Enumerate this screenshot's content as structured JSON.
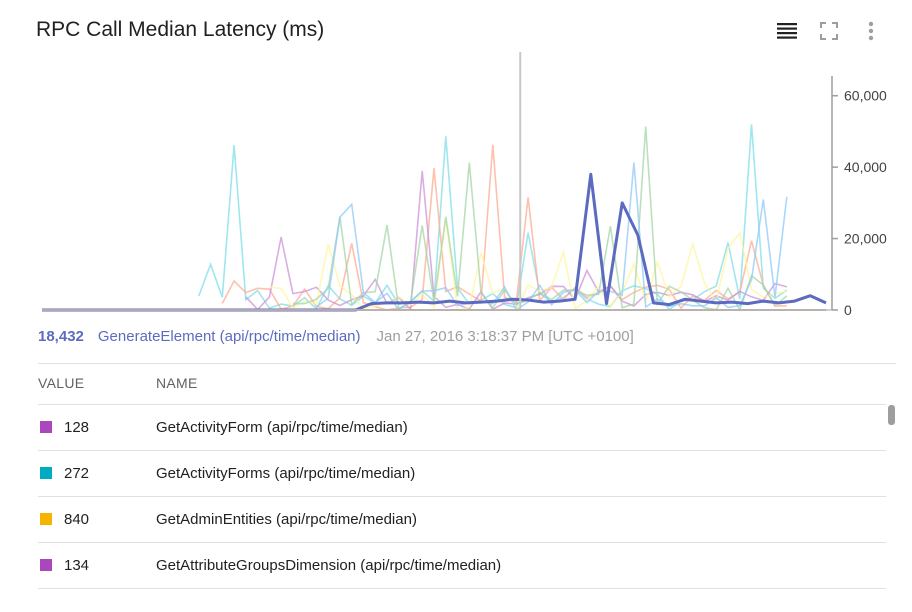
{
  "header": {
    "title": "RPC Call Median Latency (ms)",
    "icons": [
      "legend-list-icon",
      "fullscreen-icon",
      "more-vert-icon"
    ]
  },
  "chart_data": {
    "type": "line",
    "ylim": [
      0,
      70000
    ],
    "y_ticks": [
      "0",
      "20,000",
      "40,000",
      "60,000"
    ],
    "y_tick_values": [
      0,
      20000,
      40000,
      60000
    ],
    "x": [
      0,
      2,
      4,
      6,
      8,
      10,
      12,
      14,
      16,
      18,
      20,
      22,
      24,
      26,
      28,
      30,
      32,
      34,
      36,
      38,
      40,
      42,
      44,
      46,
      48,
      50,
      52,
      54,
      56,
      58,
      60,
      62,
      64,
      66,
      68,
      70,
      72,
      74,
      76,
      78,
      80,
      82,
      84,
      86,
      88,
      90,
      92,
      94,
      96,
      98,
      100
    ],
    "cursor_x": 61,
    "highlighted_series": "GenerateElement (api/rpc/time/median)",
    "series": [
      {
        "name": "GenerateElement (api/rpc/time/median)",
        "color": "#5c6bc0",
        "emphasis": true,
        "values": [
          0,
          0,
          0,
          0,
          0,
          0,
          0,
          0,
          0,
          0,
          0,
          0,
          0,
          0,
          0,
          0,
          0,
          0,
          0,
          0,
          0,
          1800,
          2000,
          2000,
          2200,
          2000,
          2500,
          2000,
          2200,
          2500,
          3000,
          2800,
          2200,
          2500,
          3000,
          38000,
          1800,
          30000,
          21000,
          2000,
          1500,
          3000,
          2500,
          2000,
          2200,
          1800,
          2500,
          2000,
          2500,
          4000,
          2000
        ]
      },
      {
        "name": "GetActivityForm (api/rpc/time/median)",
        "color": "#b0bec5",
        "values": [
          0,
          0,
          0,
          0,
          0,
          0,
          0,
          0,
          0,
          0,
          0,
          0,
          0,
          0,
          0,
          0,
          0,
          0,
          0,
          0,
          0,
          0,
          0,
          0,
          0,
          0,
          0,
          0,
          0,
          0,
          0,
          0,
          0,
          0,
          0,
          0,
          0,
          0,
          0,
          0,
          0,
          0,
          0,
          0,
          0,
          0,
          0,
          0,
          0,
          0,
          0
        ]
      },
      {
        "name": "GetActivityForms (api/rpc/time/median)",
        "color": "#80deea",
        "values": [
          0,
          0,
          0,
          0,
          0,
          0,
          0,
          0,
          0,
          0,
          0,
          0,
          0,
          0,
          0,
          0,
          0,
          0,
          0,
          0,
          0,
          0,
          0,
          0,
          0,
          0,
          0,
          0,
          0,
          0,
          0,
          0,
          0,
          0,
          0,
          0,
          0,
          0,
          0,
          0,
          0,
          0,
          0,
          0,
          0,
          0,
          0,
          0,
          0,
          0,
          0
        ]
      },
      {
        "name": "GetAdminEntities (api/rpc/time/median)",
        "color": "#ffab91",
        "values": [
          0,
          0,
          0,
          0,
          0,
          0,
          0,
          0,
          0,
          0,
          0,
          0,
          0,
          0,
          0,
          0,
          0,
          0,
          0,
          0,
          0,
          0,
          0,
          0,
          0,
          0,
          0,
          0,
          0,
          0,
          0,
          0,
          0,
          0,
          0,
          0,
          0,
          0,
          0,
          0,
          0,
          0,
          0,
          0,
          0,
          0,
          0,
          0,
          0,
          0,
          0
        ]
      }
    ]
  },
  "readout": {
    "value": "18,432",
    "name": "GenerateElement (api/rpc/time/median)",
    "time": "Jan 27, 2016 3:18:37 PM [UTC +0100]"
  },
  "table": {
    "headers": {
      "value": "VALUE",
      "name": "NAME"
    },
    "rows": [
      {
        "value": "128",
        "name": "GetActivityForm (api/rpc/time/median)",
        "color": "#ab47bc"
      },
      {
        "value": "272",
        "name": "GetActivityForms (api/rpc/time/median)",
        "color": "#00acc1"
      },
      {
        "value": "840",
        "name": "GetAdminEntities (api/rpc/time/median)",
        "color": "#f4b400"
      },
      {
        "value": "134",
        "name": "GetAttributeGroupsDimension (api/rpc/time/median)",
        "color": "#ab47bc"
      }
    ]
  }
}
